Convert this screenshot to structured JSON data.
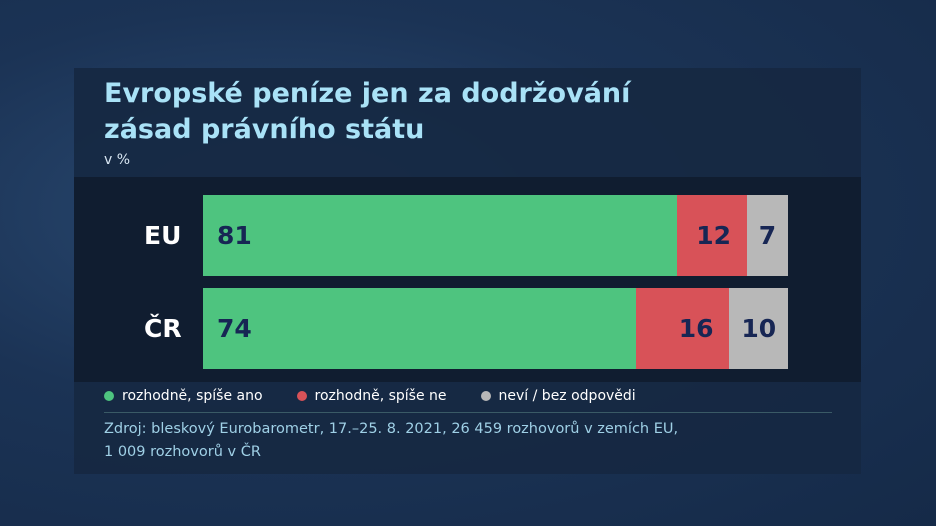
{
  "title_line1": "Evropské peníze jen za dodržování",
  "title_line2": "zásad právního státu",
  "unit": "v %",
  "legend": [
    {
      "label": "rozhodně, spíše ano",
      "color": "#4ec47f"
    },
    {
      "label": "rozhodně, spíše ne",
      "color": "#d85258"
    },
    {
      "label": "neví / bez odpovědi",
      "color": "#b8b8b8"
    }
  ],
  "source_line1": "Zdroj: bleskový Eurobarometr, 17.–25. 8. 2021, 26 459 rozhovorů v zemích EU,",
  "source_line2": "1 009 rozhovorů v ČR",
  "chart_data": {
    "type": "bar",
    "orientation": "horizontal",
    "stacked": true,
    "categories": [
      "EU",
      "ČR"
    ],
    "series": [
      {
        "name": "rozhodně, spíše ano",
        "values": [
          81,
          74
        ]
      },
      {
        "name": "rozhodně, spíše ne",
        "values": [
          12,
          16
        ]
      },
      {
        "name": "neví / bez odpovědi",
        "values": [
          7,
          10
        ]
      }
    ],
    "xlim": [
      0,
      100
    ],
    "grid": false,
    "legend_position": "bottom"
  }
}
